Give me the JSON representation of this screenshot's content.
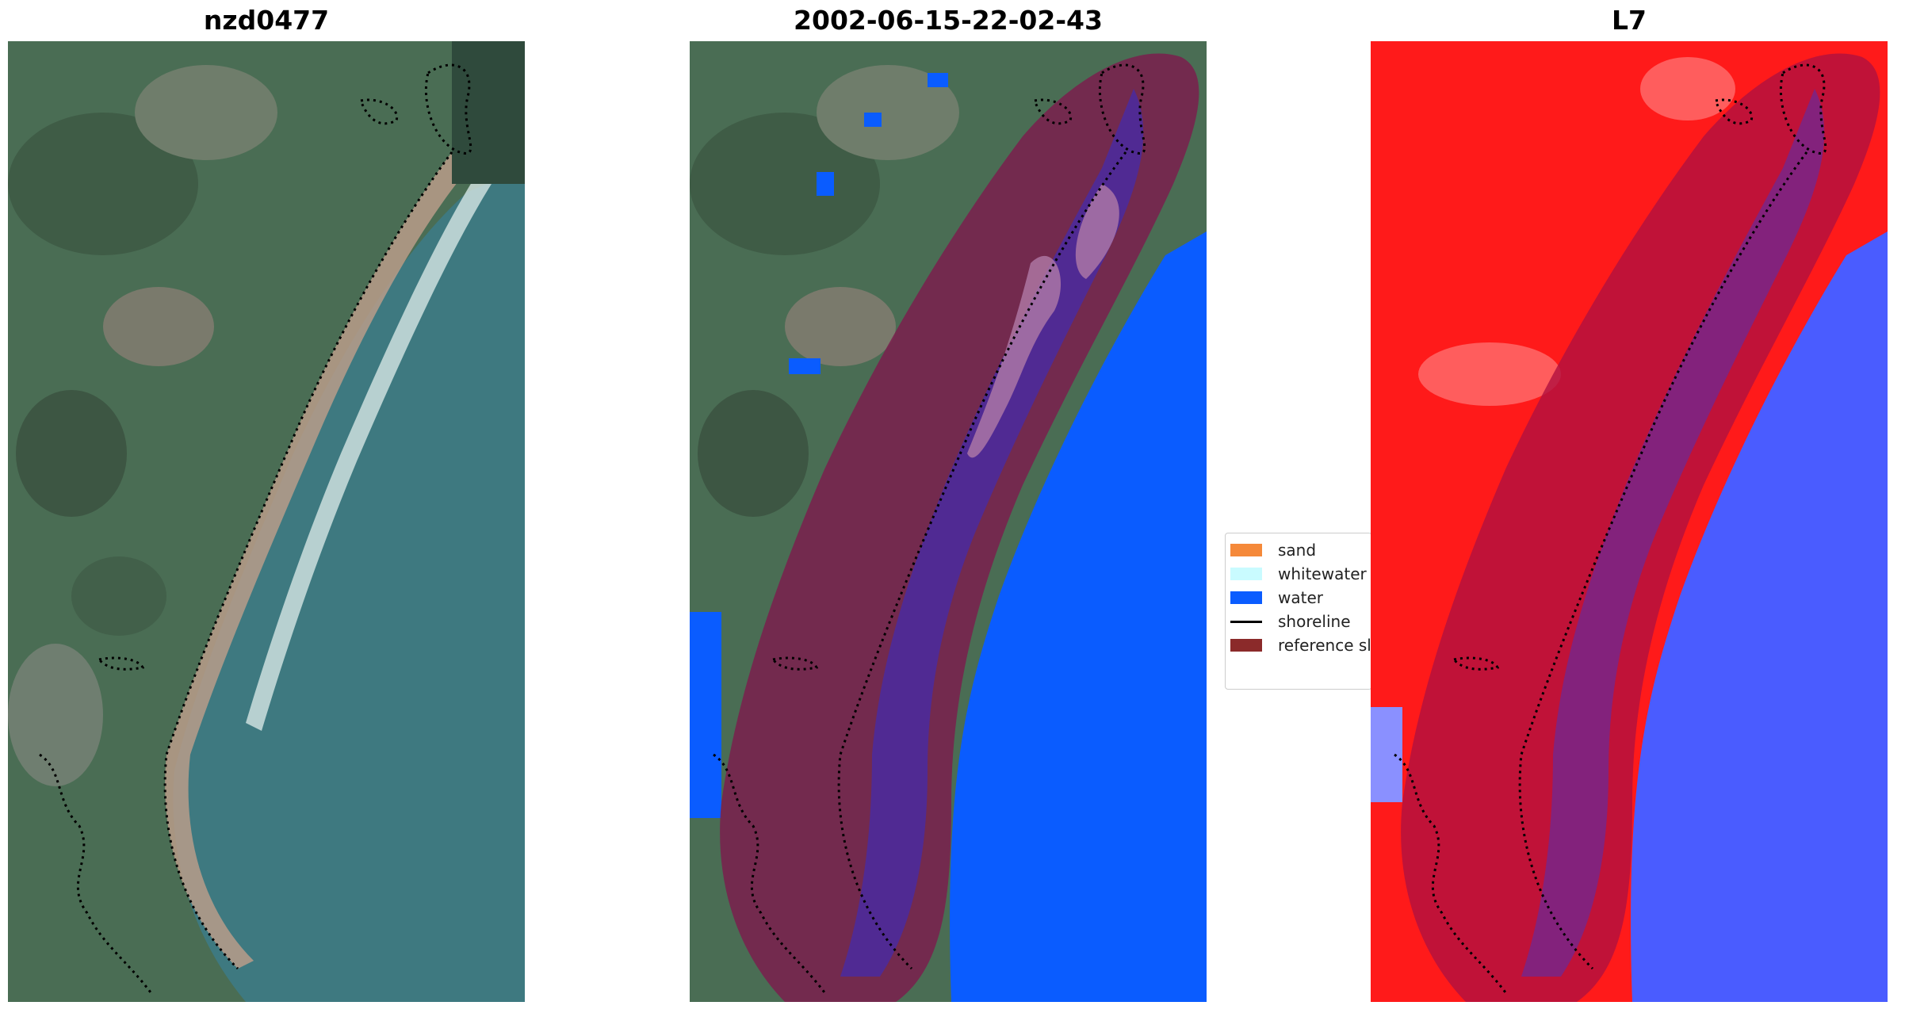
{
  "panels": [
    {
      "title": "nzd0477"
    },
    {
      "title": "2002-06-15-22-02-43"
    },
    {
      "title": "L7"
    }
  ],
  "legend": {
    "items": [
      {
        "label": "sand",
        "color": "#f5893a",
        "kind": "patch"
      },
      {
        "label": "whitewater",
        "color": "#c9fbff",
        "kind": "patch"
      },
      {
        "label": "water",
        "color": "#0a5cff",
        "kind": "patch"
      },
      {
        "label": "shoreline",
        "color": "#000000",
        "kind": "line"
      },
      {
        "label": "reference sl",
        "color": "#8b2a2a",
        "kind": "patch"
      }
    ]
  },
  "colors": {
    "sea": "#3f7a80",
    "land": "#4d6a52",
    "beach": "#c8a38a",
    "water_class": "#0a5cff",
    "buffer": "#7a1e4e",
    "index_red": "#ff1a1a",
    "index_blue": "#4a5cff"
  }
}
